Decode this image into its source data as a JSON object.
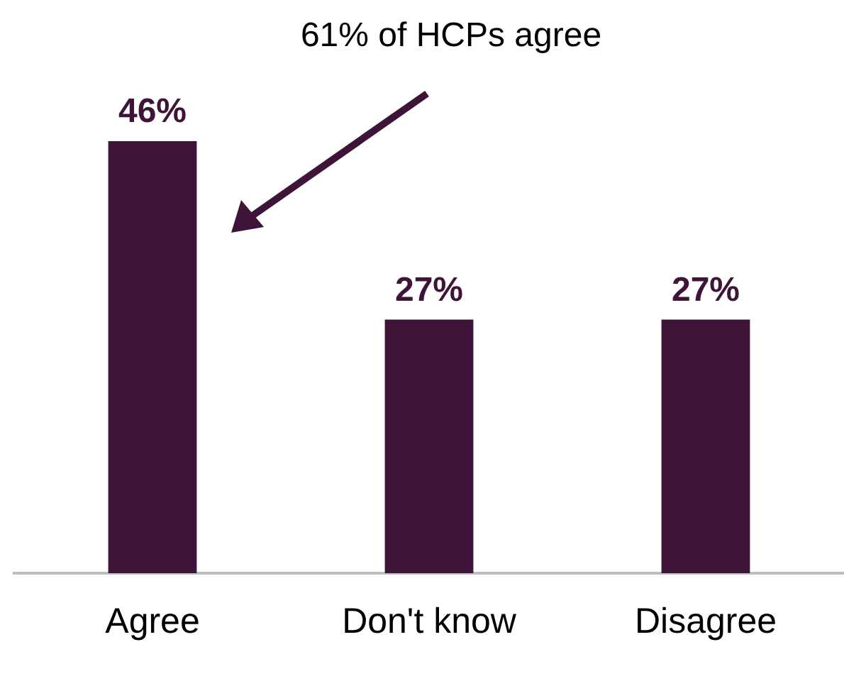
{
  "chart_data": {
    "type": "bar",
    "categories": [
      "Agree",
      "Don't know",
      "Disagree"
    ],
    "values": [
      46,
      27,
      27
    ],
    "color": "#3e1538",
    "value_labels": [
      "46%",
      "27%",
      "27%"
    ],
    "annotations": [
      "61% of HCPs agree"
    ],
    "grid": false,
    "legend": false,
    "tick_labels": "x"
  }
}
